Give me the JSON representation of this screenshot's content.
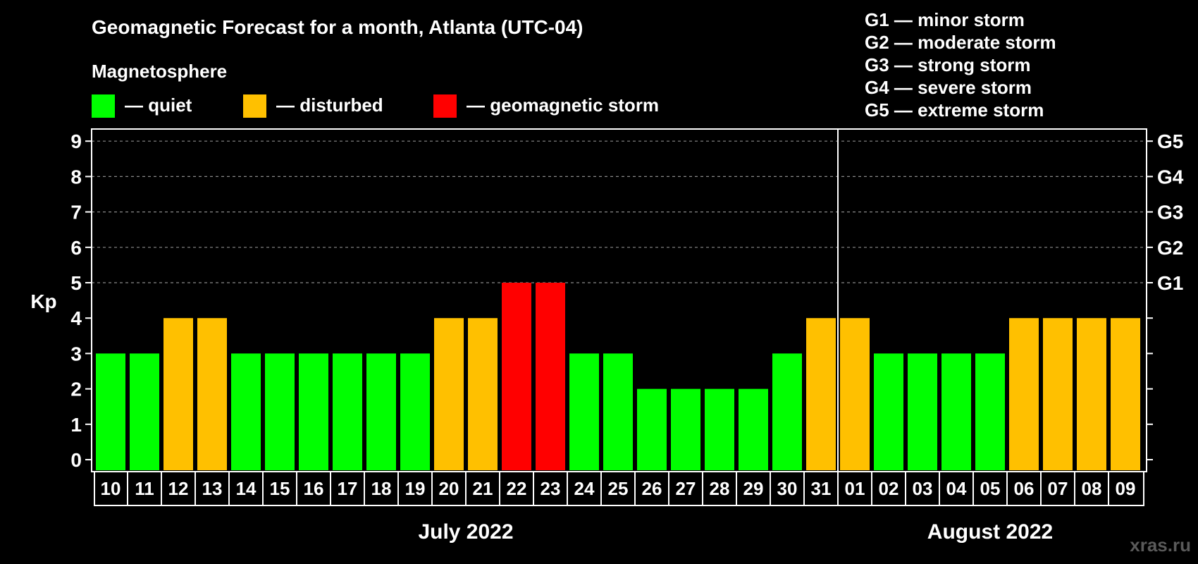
{
  "chart_data": {
    "type": "bar",
    "title": "Geomagnetic Forecast for a month, Atlanta (UTC-04)",
    "legend_title": "Magnetosphere",
    "legend": [
      {
        "key": "quiet",
        "label": "— quiet",
        "color": "#00ff00"
      },
      {
        "key": "disturbed",
        "label": "— disturbed",
        "color": "#ffc000"
      },
      {
        "key": "storm",
        "label": "— geomagnetic storm",
        "color": "#ff0000"
      }
    ],
    "storm_scale": [
      "G1 — minor storm",
      "G2 — moderate storm",
      "G3 — strong storm",
      "G4 — severe storm",
      "G5 — extreme storm"
    ],
    "ylabel": "Kp",
    "ylim": [
      0,
      9
    ],
    "yticks": [
      "0",
      "1",
      "2",
      "3",
      "4",
      "5",
      "6",
      "7",
      "8",
      "9"
    ],
    "right_axis_labels": [
      {
        "kp": 5,
        "label": "G1"
      },
      {
        "kp": 6,
        "label": "G2"
      },
      {
        "kp": 7,
        "label": "G3"
      },
      {
        "kp": 8,
        "label": "G4"
      },
      {
        "kp": 9,
        "label": "G5"
      }
    ],
    "grid": "dashed horizontal lines at Kp 5–9",
    "categories": [
      "10",
      "11",
      "12",
      "13",
      "14",
      "15",
      "16",
      "17",
      "18",
      "19",
      "20",
      "21",
      "22",
      "23",
      "24",
      "25",
      "26",
      "27",
      "28",
      "29",
      "30",
      "31",
      "01",
      "02",
      "03",
      "04",
      "05",
      "06",
      "07",
      "08",
      "09"
    ],
    "values": [
      3,
      3,
      4,
      4,
      3,
      3,
      3,
      3,
      3,
      3,
      4,
      4,
      5,
      5,
      3,
      3,
      2,
      2,
      2,
      2,
      3,
      4,
      4,
      3,
      3,
      3,
      3,
      4,
      4,
      4,
      4
    ],
    "months": [
      {
        "label": "July 2022",
        "first_index": 0,
        "last_index": 21
      },
      {
        "label": "August 2022",
        "first_index": 22,
        "last_index": 30
      }
    ]
  },
  "watermark": "xras.ru"
}
